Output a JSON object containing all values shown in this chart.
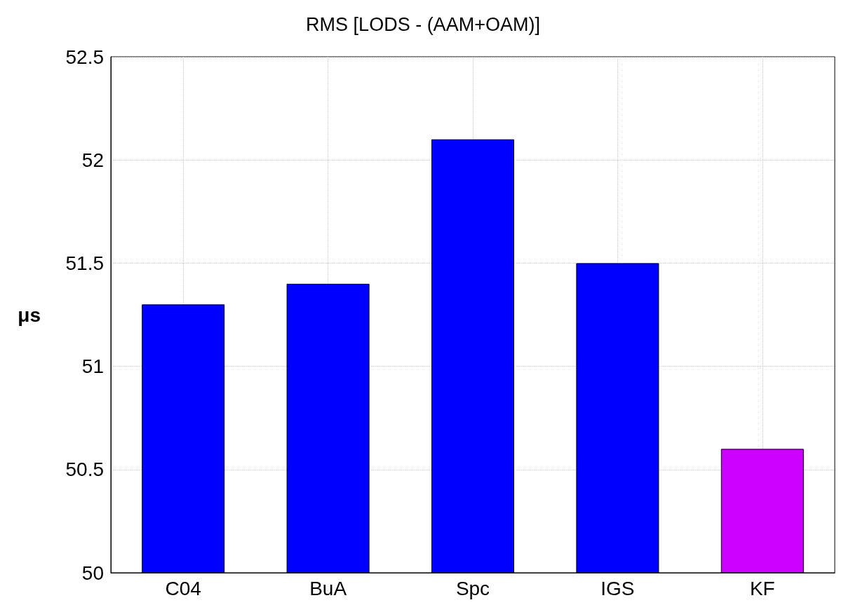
{
  "chart_data": {
    "type": "bar",
    "title": "RMS [LODS - (AAM+OAM)]",
    "ylabel": "μs",
    "categories": [
      "C04",
      "BuA",
      "Spc",
      "IGS",
      "KF"
    ],
    "values": [
      51.3,
      51.4,
      52.1,
      51.5,
      50.6
    ],
    "colors": [
      "#0000ff",
      "#0000ff",
      "#0000ff",
      "#0000ff",
      "#cc00ff"
    ],
    "ylim": [
      50,
      52.5
    ],
    "yticks": [
      50,
      50.5,
      51,
      51.5,
      52,
      52.5
    ],
    "grid": true
  }
}
